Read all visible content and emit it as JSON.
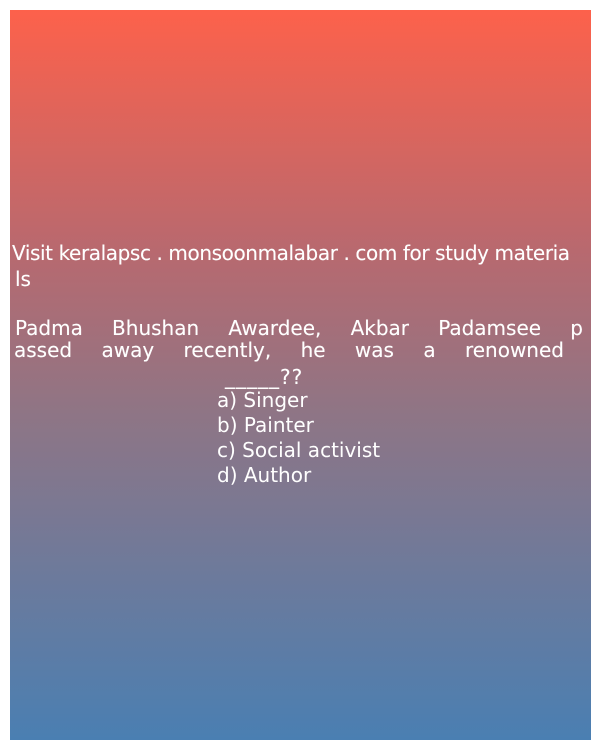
{
  "header": {
    "visit_line_1": "Visit keralapsc . monsoonmalabar . com for study materia",
    "visit_line_2": "ls"
  },
  "question": {
    "line_1_words": [
      "Padma",
      "Bhushan",
      "Awardee,",
      "Akbar",
      "Padamsee",
      "p"
    ],
    "line_2_words": [
      "assed",
      "away",
      "recently,",
      "he",
      "was",
      "a",
      "renowned"
    ],
    "line_3": "_____??"
  },
  "options": {
    "a": "a) Singer",
    "b": "b) Painter",
    "c": "c) Social activist",
    "d": "d) Author"
  }
}
